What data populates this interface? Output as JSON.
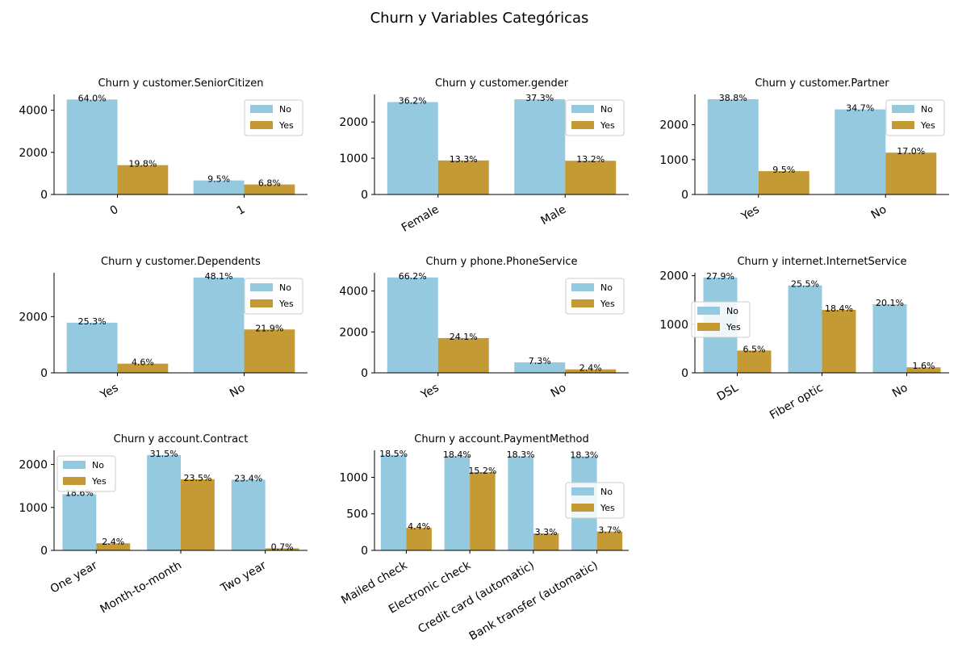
{
  "figure_title": "Churn y Variables Categóricas",
  "colors": {
    "No": "#95c9df",
    "Yes": "#c39a34"
  },
  "chart_data": [
    {
      "type": "bar",
      "title": "Churn y customer.SeniorCitizen",
      "categories": [
        "0",
        "1"
      ],
      "series": [
        {
          "name": "No",
          "values": [
            4508,
            666
          ],
          "labels": [
            "64.0%",
            "9.5%"
          ]
        },
        {
          "name": "Yes",
          "values": [
            1393,
            476
          ],
          "labels": [
            "19.8%",
            "6.8%"
          ]
        }
      ],
      "yticks": [
        0,
        2000,
        4000
      ],
      "ylim": [
        0,
        4750
      ],
      "legend": "upper-right"
    },
    {
      "type": "bar",
      "title": "Churn y customer.gender",
      "categories": [
        "Female",
        "Male"
      ],
      "series": [
        {
          "name": "No",
          "values": [
            2549,
            2625
          ],
          "labels": [
            "36.2%",
            "37.3%"
          ]
        },
        {
          "name": "Yes",
          "values": [
            939,
            930
          ],
          "labels": [
            "13.3%",
            "13.2%"
          ]
        }
      ],
      "yticks": [
        0,
        1000,
        2000
      ],
      "ylim": [
        0,
        2760
      ],
      "legend": "upper-right"
    },
    {
      "type": "bar",
      "title": "Churn y customer.Partner",
      "categories": [
        "Yes",
        "No"
      ],
      "series": [
        {
          "name": "No",
          "values": [
            2733,
            2441
          ],
          "labels": [
            "38.8%",
            "34.7%"
          ]
        },
        {
          "name": "Yes",
          "values": [
            669,
            1200
          ],
          "labels": [
            "9.5%",
            "17.0%"
          ]
        }
      ],
      "yticks": [
        0,
        1000,
        2000
      ],
      "ylim": [
        0,
        2870
      ],
      "legend": "upper-right"
    },
    {
      "type": "bar",
      "title": "Churn y customer.Dependents",
      "categories": [
        "Yes",
        "No"
      ],
      "series": [
        {
          "name": "No",
          "values": [
            1784,
            3390
          ],
          "labels": [
            "25.3%",
            "48.1%"
          ]
        },
        {
          "name": "Yes",
          "values": [
            326,
            1543
          ],
          "labels": [
            "4.6%",
            "21.9%"
          ]
        }
      ],
      "yticks": [
        0,
        2000
      ],
      "ylim": [
        0,
        3560
      ],
      "legend": "upper-right"
    },
    {
      "type": "bar",
      "title": "Churn y phone.PhoneService",
      "categories": [
        "Yes",
        "No"
      ],
      "series": [
        {
          "name": "No",
          "values": [
            4662,
            512
          ],
          "labels": [
            "66.2%",
            "7.3%"
          ]
        },
        {
          "name": "Yes",
          "values": [
            1699,
            170
          ],
          "labels": [
            "24.1%",
            "2.4%"
          ]
        }
      ],
      "yticks": [
        0,
        2000,
        4000
      ],
      "ylim": [
        0,
        4890
      ],
      "legend": "upper-right"
    },
    {
      "type": "bar",
      "title": "Churn y internet.InternetService",
      "categories": [
        "DSL",
        "Fiber optic",
        "No"
      ],
      "series": [
        {
          "name": "No",
          "values": [
            1962,
            1799,
            1413
          ],
          "labels": [
            "27.9%",
            "25.5%",
            "20.1%"
          ]
        },
        {
          "name": "Yes",
          "values": [
            459,
            1297,
            113
          ],
          "labels": [
            "6.5%",
            "18.4%",
            "1.6%"
          ]
        }
      ],
      "yticks": [
        0,
        1000,
        2000
      ],
      "ylim": [
        0,
        2060
      ],
      "legend": "center-left"
    },
    {
      "type": "bar",
      "title": "Churn y account.Contract",
      "categories": [
        "One year",
        "Month-to-month",
        "Two year"
      ],
      "series": [
        {
          "name": "No",
          "values": [
            1307,
            2220,
            1647
          ],
          "labels": [
            "18.6%",
            "31.5%",
            "23.4%"
          ]
        },
        {
          "name": "Yes",
          "values": [
            166,
            1655,
            48
          ],
          "labels": [
            "2.4%",
            "23.5%",
            "0.7%"
          ]
        }
      ],
      "yticks": [
        0,
        1000,
        2000
      ],
      "ylim": [
        0,
        2330
      ],
      "legend": "upper-left"
    },
    {
      "type": "bar",
      "title": "Churn y account.PaymentMethod",
      "categories": [
        "Mailed check",
        "Electronic check",
        "Credit card (automatic)",
        "Bank transfer (automatic)"
      ],
      "series": [
        {
          "name": "No",
          "values": [
            1304,
            1294,
            1290,
            1286
          ],
          "labels": [
            "18.5%",
            "18.4%",
            "18.3%",
            "18.3%"
          ]
        },
        {
          "name": "Yes",
          "values": [
            308,
            1071,
            232,
            258
          ],
          "labels": [
            "4.4%",
            "15.2%",
            "3.3%",
            "3.7%"
          ]
        }
      ],
      "yticks": [
        0,
        500,
        1000
      ],
      "ylim": [
        0,
        1370
      ],
      "legend": "center-right"
    }
  ]
}
